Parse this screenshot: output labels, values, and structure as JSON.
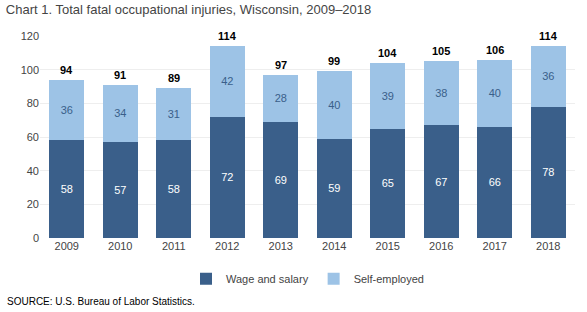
{
  "chart_data": {
    "type": "bar",
    "title": "Chart 1. Total fatal occupational injuries, Wisconsin, 2009–2018",
    "categories": [
      "2009",
      "2010",
      "2011",
      "2012",
      "2013",
      "2014",
      "2015",
      "2016",
      "2017",
      "2018"
    ],
    "series": [
      {
        "name": "Wage and salary",
        "color": "#3a5f8a",
        "values": [
          58,
          57,
          58,
          72,
          69,
          59,
          65,
          67,
          66,
          78
        ]
      },
      {
        "name": "Self-employed",
        "color": "#9dc3e6",
        "values": [
          36,
          34,
          31,
          42,
          28,
          40,
          39,
          38,
          40,
          36
        ]
      }
    ],
    "totals": [
      94,
      91,
      89,
      114,
      97,
      99,
      104,
      105,
      106,
      114
    ],
    "stacked": true,
    "data_labels": true,
    "ylim": [
      0,
      120
    ],
    "yticks": [
      0,
      20,
      40,
      60,
      80,
      100,
      120
    ],
    "grid": true,
    "legend": "bottom",
    "source": "SOURCE: U.S. Bureau of Labor Statistics."
  }
}
